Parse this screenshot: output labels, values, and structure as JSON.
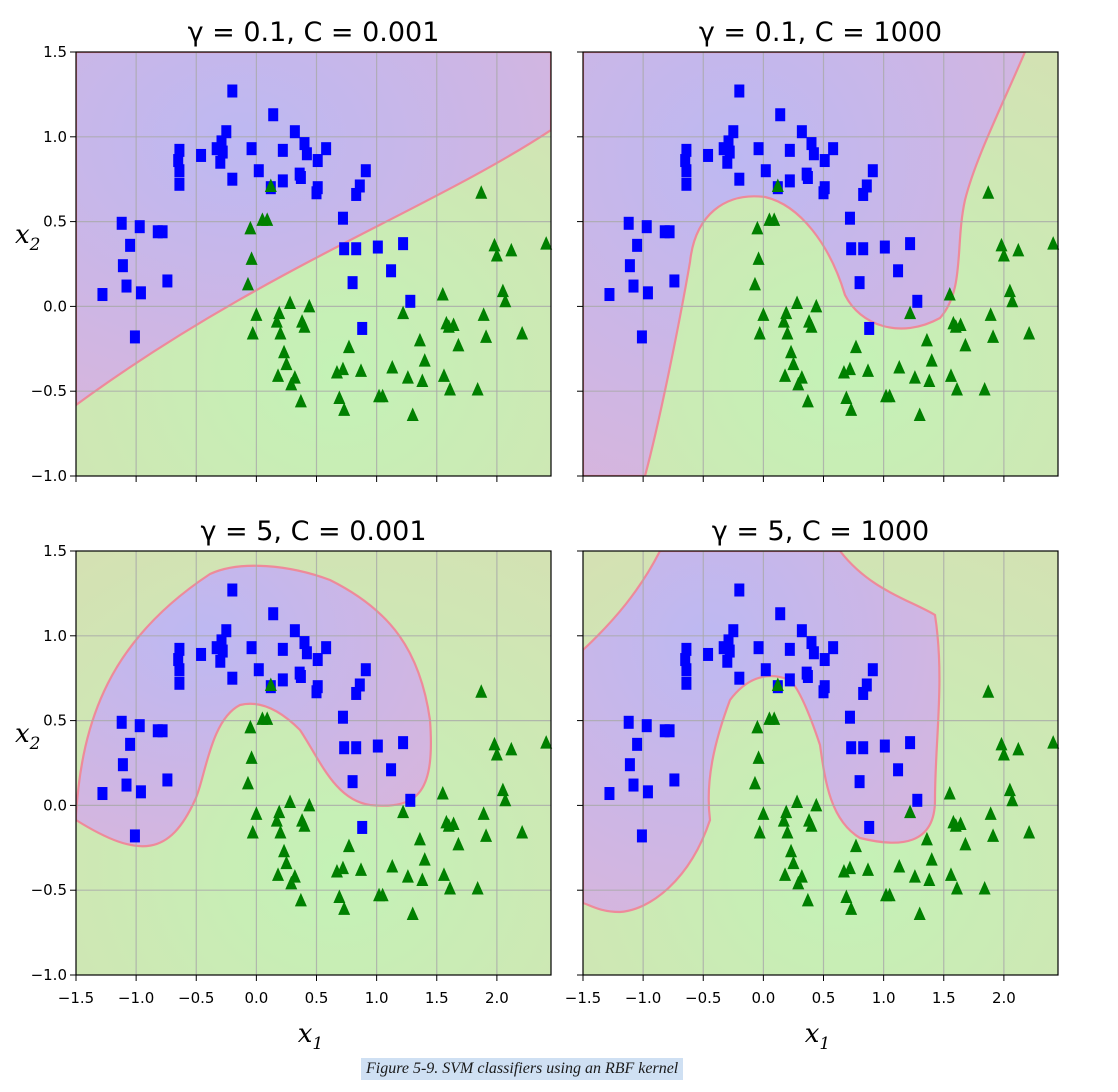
{
  "chart_data": [
    {
      "type": "scatter",
      "title": "γ = 0.1, C = 0.001",
      "gamma": "0.1",
      "C": "0.001",
      "xlabel": "",
      "ylabel": "x2",
      "xlim": [
        -1.5,
        2.45
      ],
      "ylim": [
        -1.0,
        1.5
      ],
      "xticks": [
        -1.5,
        -1.0,
        -0.5,
        0.0,
        0.5,
        1.0,
        1.5,
        2.0
      ],
      "yticks": [
        1.5,
        1.0,
        0.5,
        0.0,
        -0.5,
        -1.0
      ],
      "xtick_labels": [],
      "ytick_labels": [
        "1.5",
        "1.0",
        "0.5",
        "0.0",
        "−0.5",
        "−1.0"
      ],
      "grid": true
    },
    {
      "type": "scatter",
      "title": "γ = 0.1, C = 1000",
      "gamma": "0.1",
      "C": "1000",
      "xlabel": "",
      "ylabel": "",
      "xlim": [
        -1.5,
        2.45
      ],
      "ylim": [
        -1.0,
        1.5
      ],
      "xticks": [
        -1.5,
        -1.0,
        -0.5,
        0.0,
        0.5,
        1.0,
        1.5,
        2.0
      ],
      "yticks": [
        1.5,
        1.0,
        0.5,
        0.0,
        -0.5,
        -1.0
      ],
      "xtick_labels": [],
      "ytick_labels": [],
      "grid": true
    },
    {
      "type": "scatter",
      "title": "γ = 5, C = 0.001",
      "gamma": "5",
      "C": "0.001",
      "xlabel": "x1",
      "ylabel": "x2",
      "xlim": [
        -1.5,
        2.45
      ],
      "ylim": [
        -1.0,
        1.5
      ],
      "xticks": [
        -1.5,
        -1.0,
        -0.5,
        0.0,
        0.5,
        1.0,
        1.5,
        2.0
      ],
      "yticks": [
        1.5,
        1.0,
        0.5,
        0.0,
        -0.5,
        -1.0
      ],
      "xtick_labels": [
        "−1.5",
        "−1.0",
        "−0.5",
        "0.0",
        "0.5",
        "1.0",
        "1.5",
        "2.0"
      ],
      "ytick_labels": [
        "1.5",
        "1.0",
        "0.5",
        "0.0",
        "−0.5",
        "−1.0"
      ],
      "grid": true
    },
    {
      "type": "scatter",
      "title": "γ = 5, C = 1000",
      "gamma": "5",
      "C": "1000",
      "xlabel": "x1",
      "ylabel": "",
      "xlim": [
        -1.5,
        2.45
      ],
      "ylim": [
        -1.0,
        1.5
      ],
      "xticks": [
        -1.5,
        -1.0,
        -0.5,
        0.0,
        0.5,
        1.0,
        1.5,
        2.0
      ],
      "yticks": [
        1.5,
        1.0,
        0.5,
        0.0,
        -0.5,
        -1.0
      ],
      "xtick_labels": [
        "−1.5",
        "−1.0",
        "−0.5",
        "0.0",
        "0.5",
        "1.0",
        "1.5",
        "2.0"
      ],
      "ytick_labels": [],
      "grid": true
    }
  ],
  "shared_series": [
    {
      "marker": "square",
      "color": "#0000ff",
      "points": [
        [
          -1.28,
          0.07
        ],
        [
          -1.12,
          0.49
        ],
        [
          -1.11,
          0.24
        ],
        [
          -1.08,
          0.12
        ],
        [
          -1.05,
          0.36
        ],
        [
          -1.01,
          -0.18
        ],
        [
          -0.97,
          0.47
        ],
        [
          -0.96,
          0.08
        ],
        [
          -0.82,
          0.44
        ],
        [
          -0.78,
          0.44
        ],
        [
          -0.74,
          0.15
        ],
        [
          -0.65,
          0.86
        ],
        [
          -0.64,
          0.92
        ],
        [
          -0.64,
          0.8
        ],
        [
          -0.64,
          0.72
        ],
        [
          -0.46,
          0.89
        ],
        [
          -0.33,
          0.93
        ],
        [
          -0.3,
          0.85
        ],
        [
          -0.29,
          0.97
        ],
        [
          -0.28,
          0.91
        ],
        [
          -0.25,
          1.03
        ],
        [
          -0.2,
          1.27
        ],
        [
          -0.2,
          0.75
        ],
        [
          -0.04,
          0.93
        ],
        [
          0.02,
          0.8
        ],
        [
          0.14,
          1.13
        ],
        [
          0.12,
          0.7
        ],
        [
          0.22,
          0.92
        ],
        [
          0.22,
          0.74
        ],
        [
          0.32,
          1.03
        ],
        [
          0.36,
          0.78
        ],
        [
          0.37,
          0.76
        ],
        [
          0.4,
          0.96
        ],
        [
          0.42,
          0.9
        ],
        [
          0.5,
          0.67
        ],
        [
          0.51,
          0.7
        ],
        [
          0.51,
          0.86
        ],
        [
          0.58,
          0.93
        ],
        [
          0.72,
          0.52
        ],
        [
          0.73,
          0.34
        ],
        [
          0.8,
          0.14
        ],
        [
          0.83,
          0.66
        ],
        [
          0.83,
          0.34
        ],
        [
          0.86,
          0.71
        ],
        [
          0.88,
          -0.13
        ],
        [
          0.91,
          0.8
        ],
        [
          1.01,
          0.35
        ],
        [
          1.12,
          0.21
        ],
        [
          1.22,
          0.37
        ],
        [
          1.28,
          0.03
        ]
      ]
    },
    {
      "marker": "triangle",
      "color": "#008000",
      "points": [
        [
          -0.07,
          0.13
        ],
        [
          -0.05,
          0.46
        ],
        [
          -0.04,
          0.28
        ],
        [
          -0.03,
          -0.16
        ],
        [
          0.0,
          -0.05
        ],
        [
          0.05,
          0.51
        ],
        [
          0.09,
          0.51
        ],
        [
          0.12,
          0.71
        ],
        [
          0.17,
          -0.09
        ],
        [
          0.18,
          -0.41
        ],
        [
          0.19,
          -0.04
        ],
        [
          0.2,
          -0.16
        ],
        [
          0.23,
          -0.27
        ],
        [
          0.25,
          -0.34
        ],
        [
          0.28,
          0.02
        ],
        [
          0.29,
          -0.46
        ],
        [
          0.32,
          -0.42
        ],
        [
          0.37,
          -0.56
        ],
        [
          0.38,
          -0.09
        ],
        [
          0.4,
          -0.12
        ],
        [
          0.44,
          0.0
        ],
        [
          0.67,
          -0.39
        ],
        [
          0.69,
          -0.54
        ],
        [
          0.72,
          -0.37
        ],
        [
          0.73,
          -0.61
        ],
        [
          0.77,
          -0.24
        ],
        [
          0.87,
          -0.38
        ],
        [
          1.02,
          -0.53
        ],
        [
          1.05,
          -0.53
        ],
        [
          1.13,
          -0.36
        ],
        [
          1.22,
          -0.04
        ],
        [
          1.26,
          -0.42
        ],
        [
          1.3,
          -0.64
        ],
        [
          1.36,
          -0.2
        ],
        [
          1.38,
          -0.44
        ],
        [
          1.4,
          -0.32
        ],
        [
          1.55,
          0.07
        ],
        [
          1.56,
          -0.41
        ],
        [
          1.58,
          -0.1
        ],
        [
          1.6,
          -0.12
        ],
        [
          1.61,
          -0.49
        ],
        [
          1.64,
          -0.11
        ],
        [
          1.68,
          -0.23
        ],
        [
          1.84,
          -0.49
        ],
        [
          1.87,
          0.67
        ],
        [
          1.89,
          -0.05
        ],
        [
          1.91,
          -0.18
        ],
        [
          1.98,
          0.36
        ],
        [
          2.0,
          0.3
        ],
        [
          2.05,
          0.09
        ],
        [
          2.07,
          0.03
        ],
        [
          2.12,
          0.33
        ],
        [
          2.21,
          -0.16
        ],
        [
          2.41,
          0.37
        ]
      ]
    }
  ],
  "caption": "Figure 5-9. SVM classifiers using an RBF kernel"
}
